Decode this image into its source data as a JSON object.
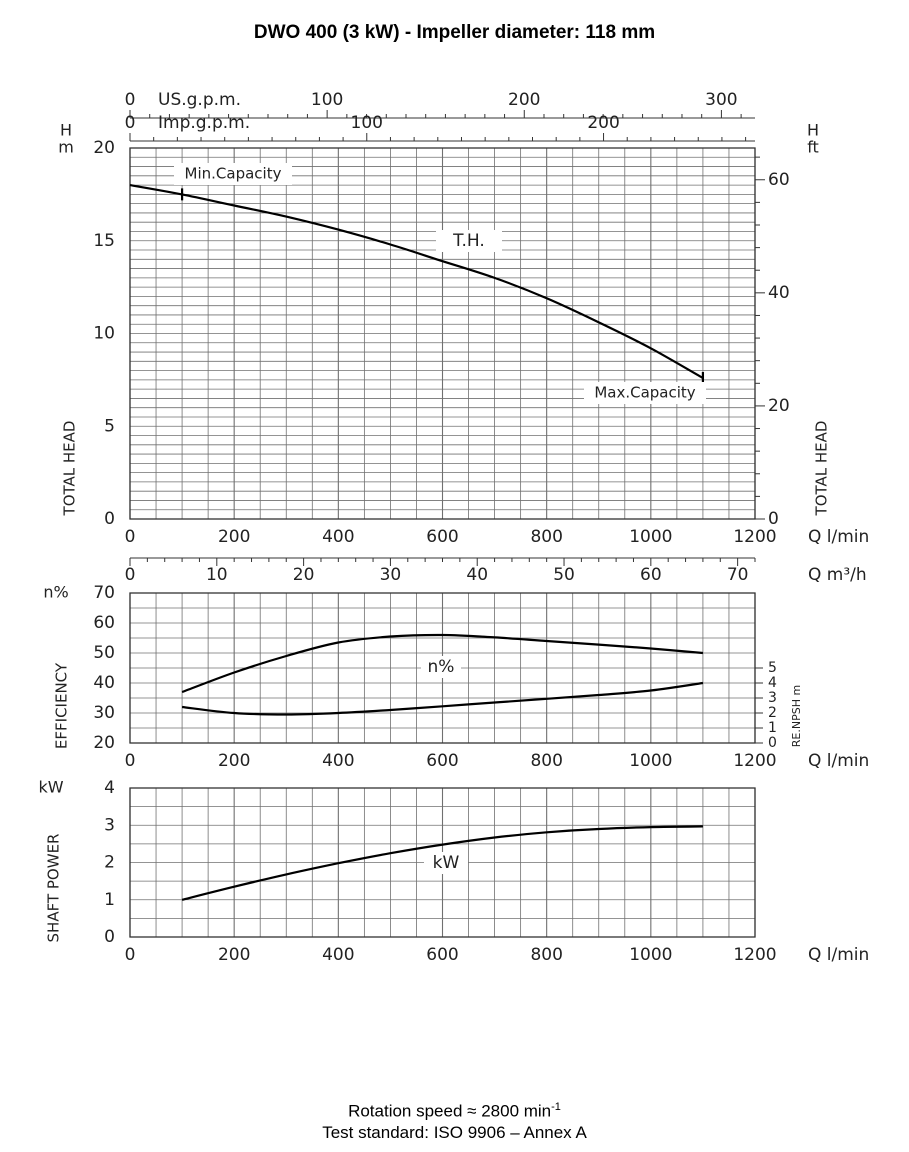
{
  "title": "DWO 400 (3 kW) - Impeller diameter: 118 mm",
  "footer": {
    "rotation_label": "Rotation speed ≈ 2800 min",
    "rotation_exp": "-1",
    "standard": "Test standard: ISO 9906 – Annex A"
  },
  "chart_data": [
    {
      "type": "line",
      "id": "head",
      "x_unit": "Q l/min",
      "xlim": [
        0,
        1200
      ],
      "x_ticks": [
        0,
        200,
        400,
        600,
        800,
        1000,
        1200
      ],
      "ylim": [
        0,
        20
      ],
      "y_ticks": [
        0,
        5,
        10,
        15,
        20
      ],
      "y_unit": "H m",
      "y_unit_left": [
        "H",
        "m"
      ],
      "ylabel": "TOTAL HEAD",
      "ylabel_right": "TOTAL HEAD",
      "y2_unit": [
        "H",
        "ft"
      ],
      "y2_ticks": [
        0,
        20,
        40,
        60
      ],
      "grid": true,
      "top_axes": [
        {
          "label": "US.g.p.m.",
          "ticks": [
            0,
            100,
            200,
            300
          ],
          "lpm_per_unit": 3.785
        },
        {
          "label": "Imp.g.p.m.",
          "ticks": [
            0,
            100,
            200
          ],
          "lpm_per_unit": 4.546
        }
      ],
      "series": [
        {
          "name": "T.H.",
          "x": [
            0,
            100,
            200,
            300,
            400,
            500,
            600,
            700,
            800,
            900,
            1000,
            1100
          ],
          "y": [
            18.0,
            17.5,
            16.9,
            16.3,
            15.6,
            14.8,
            13.9,
            13.0,
            11.9,
            10.6,
            9.2,
            7.6
          ]
        }
      ],
      "annotations": [
        {
          "text": "Min.Capacity",
          "x": 100,
          "y": 17.5
        },
        {
          "text": "Max.Capacity",
          "x": 1100,
          "y": 7.6
        }
      ],
      "m3h_axis": {
        "unit": "Q m³/h",
        "ticks": [
          0,
          10,
          20,
          30,
          40,
          50,
          60,
          70
        ]
      }
    },
    {
      "type": "line",
      "id": "efficiency",
      "x_unit": "Q l/min",
      "xlim": [
        0,
        1200
      ],
      "x_ticks": [
        0,
        200,
        400,
        600,
        800,
        1000,
        1200
      ],
      "ylim": [
        20,
        70
      ],
      "y_ticks": [
        20,
        30,
        40,
        50,
        60,
        70
      ],
      "y_unit": "n%",
      "ylabel": "EFFICIENCY",
      "ylabel_right": "RE.NPSH m",
      "y2_ticks": [
        0,
        1,
        2,
        3,
        4,
        5
      ],
      "grid": true,
      "series": [
        {
          "name": "n%",
          "axis": "left",
          "x": [
            100,
            200,
            300,
            400,
            500,
            600,
            700,
            800,
            900,
            1000,
            1100
          ],
          "y": [
            37,
            43.5,
            49,
            53.5,
            55.5,
            56,
            55.2,
            54,
            52.8,
            51.5,
            50
          ]
        },
        {
          "name": "NPSH",
          "axis": "right",
          "x": [
            100,
            200,
            300,
            400,
            500,
            600,
            700,
            800,
            900,
            1000,
            1100
          ],
          "y": [
            2.4,
            2.0,
            1.9,
            2.0,
            2.2,
            2.45,
            2.7,
            2.95,
            3.2,
            3.5,
            4.0
          ]
        }
      ]
    },
    {
      "type": "line",
      "id": "power",
      "x_unit": "Q l/min",
      "xlim": [
        0,
        1200
      ],
      "x_ticks": [
        0,
        200,
        400,
        600,
        800,
        1000,
        1200
      ],
      "ylim": [
        0,
        4
      ],
      "y_ticks": [
        0,
        1,
        2,
        3,
        4
      ],
      "y_unit": "kW",
      "ylabel": "SHAFT POWER",
      "grid": true,
      "series": [
        {
          "name": "kW",
          "x": [
            100,
            200,
            300,
            400,
            500,
            600,
            700,
            800,
            900,
            1000,
            1100
          ],
          "y": [
            1.0,
            1.35,
            1.68,
            1.98,
            2.25,
            2.48,
            2.67,
            2.81,
            2.9,
            2.95,
            2.97
          ]
        }
      ]
    }
  ]
}
